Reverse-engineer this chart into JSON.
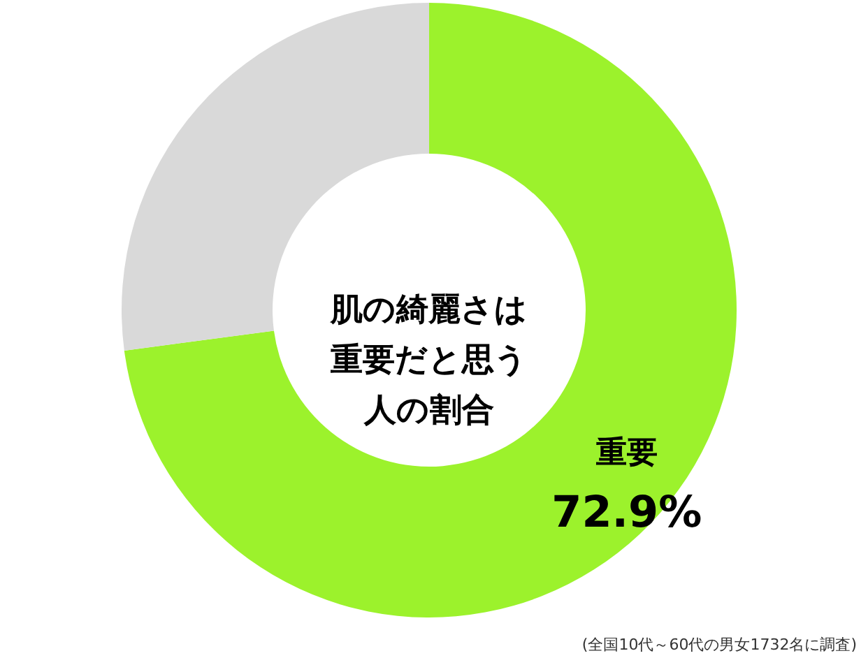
{
  "chart_data": {
    "type": "donut",
    "title": "肌の綺麗さは重要だと思う人の割合",
    "categories": [
      "重要",
      null
    ],
    "values": [
      72.9,
      27.1
    ],
    "colors": [
      "#9cf22c",
      "#d9d9d9"
    ],
    "value_labels": [
      "72.9%",
      null
    ],
    "annotations": [
      "(全国10代～60代の男女1732名に調査)"
    ]
  }
}
